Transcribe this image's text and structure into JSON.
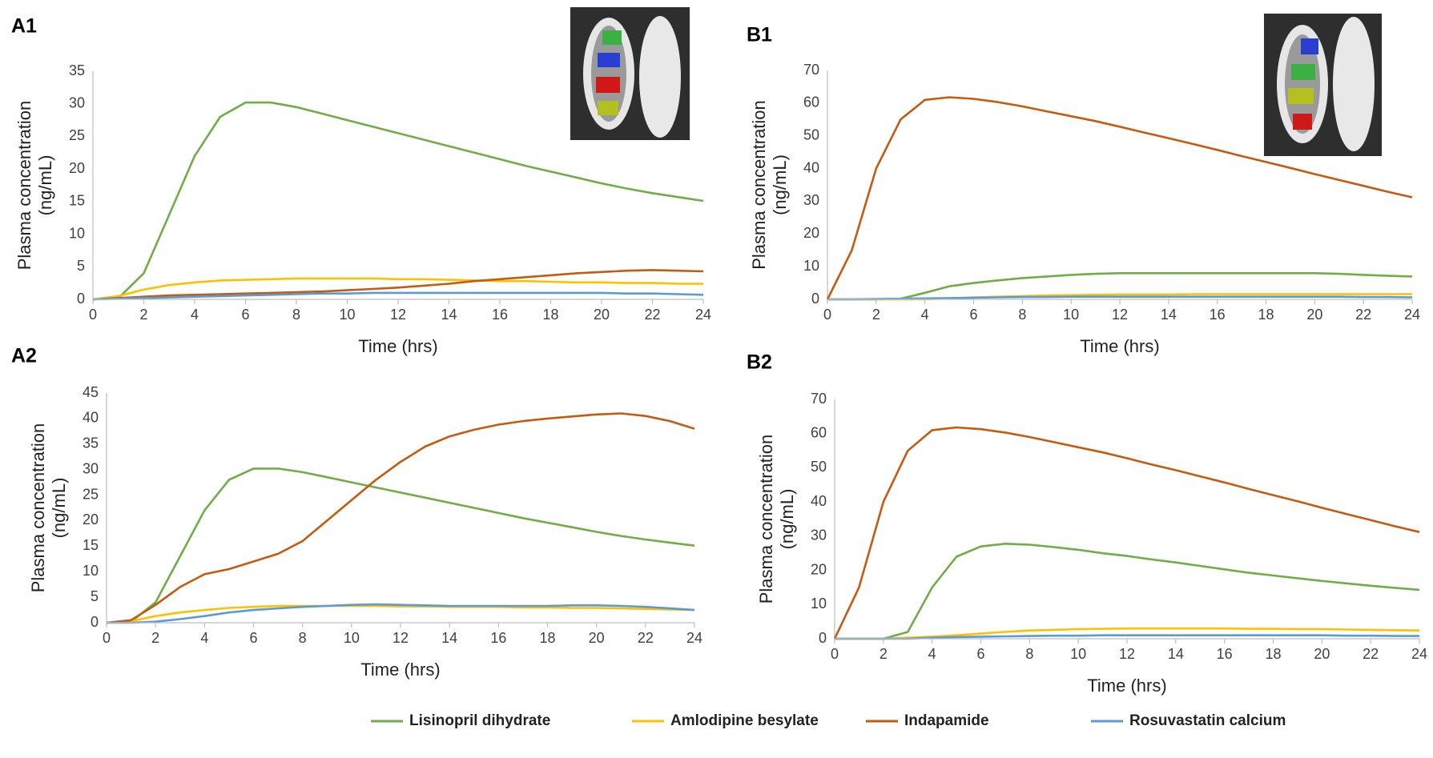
{
  "chart_data": [
    {
      "type": "line",
      "title": "A1",
      "xlabel": "Time (hrs)",
      "ylabel": [
        "Plasma concentration",
        "(ng/mL)"
      ],
      "x": [
        0,
        1,
        2,
        3,
        4,
        5,
        6,
        7,
        8,
        9,
        10,
        11,
        12,
        13,
        14,
        15,
        16,
        17,
        18,
        19,
        20,
        21,
        22,
        23,
        24
      ],
      "xlim": [
        0,
        24
      ],
      "xticks": [
        0,
        2,
        4,
        6,
        8,
        10,
        12,
        14,
        16,
        18,
        20,
        22,
        24
      ],
      "ylim": [
        0,
        35
      ],
      "yticks": [
        0,
        5,
        10,
        15,
        20,
        25,
        30,
        35
      ],
      "series": [
        {
          "name": "Lisinopril dihydrate",
          "color": "#70ad47",
          "values": [
            0,
            0.2,
            4,
            13,
            22,
            28,
            30.2,
            30.2,
            29.5,
            28.5,
            27.5,
            26.5,
            25.5,
            24.5,
            23.5,
            22.5,
            21.5,
            20.5,
            19.6,
            18.7,
            17.8,
            17,
            16.3,
            15.7,
            15.1
          ]
        },
        {
          "name": "Amlodipine besylate",
          "color": "#ffc000",
          "values": [
            0,
            0.5,
            1.5,
            2.2,
            2.6,
            2.9,
            3,
            3.1,
            3.2,
            3.2,
            3.2,
            3.2,
            3.1,
            3.1,
            3,
            2.9,
            2.8,
            2.8,
            2.7,
            2.6,
            2.6,
            2.5,
            2.5,
            2.4,
            2.4
          ]
        },
        {
          "name": "Indapamide",
          "color": "#c55a11",
          "values": [
            0,
            0.2,
            0.4,
            0.6,
            0.7,
            0.8,
            0.9,
            1,
            1.1,
            1.2,
            1.4,
            1.6,
            1.8,
            2.1,
            2.4,
            2.8,
            3.1,
            3.4,
            3.7,
            4,
            4.2,
            4.4,
            4.5,
            4.4,
            4.3
          ]
        },
        {
          "name": "Rosuvastatin calcium",
          "color": "#5b9bd5",
          "values": [
            0,
            0.1,
            0.2,
            0.3,
            0.4,
            0.5,
            0.6,
            0.7,
            0.8,
            0.9,
            0.9,
            1,
            1,
            1,
            1,
            1,
            1,
            1,
            1,
            1,
            1,
            0.9,
            0.9,
            0.8,
            0.7
          ]
        }
      ]
    },
    {
      "type": "line",
      "title": "A2",
      "xlabel": "Time (hrs)",
      "ylabel": [
        "Plasma concentration",
        "(ng/mL)"
      ],
      "x": [
        0,
        1,
        2,
        3,
        4,
        5,
        6,
        7,
        8,
        9,
        10,
        11,
        12,
        13,
        14,
        15,
        16,
        17,
        18,
        19,
        20,
        21,
        22,
        23,
        24
      ],
      "xlim": [
        0,
        24
      ],
      "xticks": [
        0,
        2,
        4,
        6,
        8,
        10,
        12,
        14,
        16,
        18,
        20,
        22,
        24
      ],
      "ylim": [
        0,
        45
      ],
      "yticks": [
        0,
        5,
        10,
        15,
        20,
        25,
        30,
        35,
        40,
        45
      ],
      "series": [
        {
          "color": "#70ad47",
          "values": [
            0,
            0.2,
            4,
            13,
            22,
            28,
            30.2,
            30.2,
            29.5,
            28.5,
            27.5,
            26.5,
            25.5,
            24.5,
            23.5,
            22.5,
            21.5,
            20.5,
            19.6,
            18.7,
            17.8,
            17,
            16.3,
            15.7,
            15.1
          ]
        },
        {
          "color": "#ffc000",
          "values": [
            0,
            0.3,
            1.3,
            2,
            2.5,
            2.9,
            3.1,
            3.3,
            3.3,
            3.3,
            3.3,
            3.3,
            3.2,
            3.2,
            3.1,
            3.1,
            3.1,
            3,
            3,
            2.9,
            2.9,
            2.8,
            2.7,
            2.6,
            2.5
          ]
        },
        {
          "color": "#c55a11",
          "values": [
            0,
            0.5,
            3.5,
            7,
            9.5,
            10.5,
            12,
            13.5,
            16,
            20,
            24,
            28,
            31.5,
            34.5,
            36.5,
            37.8,
            38.8,
            39.5,
            40,
            40.4,
            40.8,
            41,
            40.5,
            39.5,
            38
          ]
        },
        {
          "color": "#5b9bd5",
          "values": [
            0,
            0,
            0.2,
            0.7,
            1.3,
            2,
            2.5,
            2.8,
            3.1,
            3.3,
            3.5,
            3.6,
            3.5,
            3.4,
            3.3,
            3.3,
            3.3,
            3.3,
            3.3,
            3.4,
            3.4,
            3.3,
            3.1,
            2.8,
            2.5
          ]
        }
      ]
    },
    {
      "type": "line",
      "title": "B1",
      "xlabel": "Time (hrs)",
      "ylabel": [
        "Plasma concentration",
        "(ng/mL)"
      ],
      "x": [
        0,
        1,
        2,
        3,
        4,
        5,
        6,
        7,
        8,
        9,
        10,
        11,
        12,
        13,
        14,
        15,
        16,
        17,
        18,
        19,
        20,
        21,
        22,
        23,
        24
      ],
      "xlim": [
        0,
        24
      ],
      "xticks": [
        0,
        2,
        4,
        6,
        8,
        10,
        12,
        14,
        16,
        18,
        20,
        22,
        24
      ],
      "ylim": [
        0,
        70
      ],
      "yticks": [
        0,
        10,
        20,
        30,
        40,
        50,
        60,
        70
      ],
      "series": [
        {
          "color": "#70ad47",
          "values": [
            0,
            0,
            0,
            0.2,
            2,
            4,
            5,
            5.8,
            6.5,
            7,
            7.5,
            7.8,
            8,
            8,
            8,
            8,
            8,
            8,
            8,
            8,
            8,
            7.8,
            7.5,
            7.2,
            7
          ]
        },
        {
          "color": "#ffc000",
          "values": [
            0,
            0,
            0,
            0,
            0,
            0.3,
            0.6,
            0.8,
            1,
            1.2,
            1.3,
            1.4,
            1.5,
            1.5,
            1.5,
            1.6,
            1.6,
            1.6,
            1.6,
            1.6,
            1.6,
            1.6,
            1.6,
            1.6,
            1.6
          ]
        },
        {
          "color": "#c55a11",
          "values": [
            0,
            15,
            40,
            55,
            61,
            61.8,
            61.3,
            60.3,
            59,
            57.5,
            56,
            54.5,
            52.8,
            51,
            49.3,
            47.5,
            45.7,
            43.8,
            42,
            40.2,
            38.3,
            36.5,
            34.7,
            32.9,
            31.2
          ]
        },
        {
          "color": "#5b9bd5",
          "values": [
            0,
            0,
            0.1,
            0.2,
            0.3,
            0.4,
            0.5,
            0.6,
            0.7,
            0.7,
            0.8,
            0.8,
            0.8,
            0.8,
            0.8,
            0.8,
            0.8,
            0.8,
            0.8,
            0.8,
            0.8,
            0.8,
            0.7,
            0.7,
            0.6
          ]
        }
      ]
    },
    {
      "type": "line",
      "title": "B2",
      "xlabel": "Time (hrs)",
      "ylabel": [
        "Plasma concentration",
        "(ng/mL)"
      ],
      "x": [
        0,
        1,
        2,
        3,
        4,
        5,
        6,
        7,
        8,
        9,
        10,
        11,
        12,
        13,
        14,
        15,
        16,
        17,
        18,
        19,
        20,
        21,
        22,
        23,
        24
      ],
      "xlim": [
        0,
        24
      ],
      "xticks": [
        0,
        2,
        4,
        6,
        8,
        10,
        12,
        14,
        16,
        18,
        20,
        22,
        24
      ],
      "ylim": [
        0,
        70
      ],
      "yticks": [
        0,
        10,
        20,
        30,
        40,
        50,
        60,
        70
      ],
      "series": [
        {
          "color": "#70ad47",
          "values": [
            0,
            0,
            0,
            2,
            15,
            24,
            27,
            27.8,
            27.5,
            26.8,
            26,
            25,
            24.2,
            23.2,
            22.3,
            21.3,
            20.3,
            19.3,
            18.5,
            17.7,
            16.9,
            16.2,
            15.5,
            14.9,
            14.3
          ]
        },
        {
          "color": "#ffc000",
          "values": [
            0,
            0,
            0,
            0.3,
            0.6,
            1,
            1.5,
            2,
            2.4,
            2.6,
            2.8,
            2.9,
            3,
            3,
            3,
            3,
            3,
            2.9,
            2.9,
            2.8,
            2.8,
            2.7,
            2.6,
            2.5,
            2.4
          ]
        },
        {
          "color": "#c55a11",
          "values": [
            0,
            15,
            40,
            55,
            61,
            61.8,
            61.3,
            60.3,
            59,
            57.5,
            56,
            54.5,
            52.8,
            51,
            49.3,
            47.5,
            45.7,
            43.8,
            42,
            40.2,
            38.3,
            36.5,
            34.7,
            32.9,
            31.2
          ]
        },
        {
          "color": "#5b9bd5",
          "values": [
            0,
            0,
            0,
            0,
            0.3,
            0.5,
            0.6,
            0.7,
            0.8,
            0.9,
            0.9,
            1,
            1,
            1,
            1,
            1,
            1,
            1,
            1,
            1,
            1,
            0.9,
            0.9,
            0.8,
            0.8
          ]
        }
      ]
    }
  ]
}
